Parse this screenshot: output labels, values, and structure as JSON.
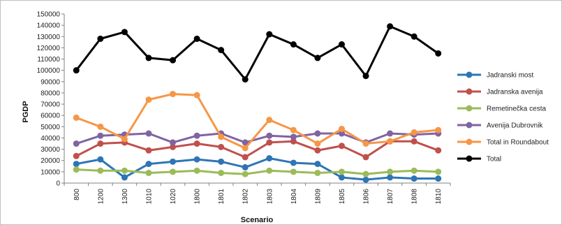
{
  "chart_data": {
    "type": "line",
    "title": "",
    "xlabel": "Scenario",
    "ylabel": "PGDP",
    "ylim": [
      0,
      150000
    ],
    "ytick_step": 10000,
    "grid": false,
    "legend_position": "right",
    "categories": [
      "800",
      "1200",
      "1300",
      "1010",
      "1020",
      "1800",
      "1801",
      "1802",
      "1803",
      "1804",
      "1809",
      "1805",
      "1806",
      "1807",
      "1808",
      "1810"
    ],
    "series": [
      {
        "name": "Jadranski most",
        "color": "#2e75b6",
        "values": [
          17000,
          21000,
          5000,
          17000,
          19000,
          21000,
          19000,
          14000,
          22000,
          18000,
          17000,
          5000,
          3000,
          5000,
          4000,
          4000
        ]
      },
      {
        "name": "Jadranska avenija",
        "color": "#c0504d",
        "values": [
          24000,
          35000,
          36000,
          29000,
          32000,
          35000,
          32000,
          23000,
          36000,
          37000,
          29000,
          33000,
          23000,
          37000,
          37000,
          29000
        ]
      },
      {
        "name": "Remetinečka cesta",
        "color": "#9bbb59",
        "values": [
          12000,
          11000,
          11000,
          9000,
          10000,
          11000,
          9000,
          8000,
          11000,
          10000,
          9000,
          10000,
          8000,
          10000,
          11000,
          10000
        ]
      },
      {
        "name": "Avenija Dubrovnik",
        "color": "#8064a2",
        "values": [
          35000,
          42000,
          43000,
          44000,
          36000,
          42000,
          44000,
          36000,
          42000,
          41000,
          44000,
          44000,
          36000,
          44000,
          43000,
          44000
        ]
      },
      {
        "name": "Total in Roundabout",
        "color": "#f79646",
        "values": [
          58000,
          50000,
          39000,
          74000,
          79000,
          78000,
          41000,
          31000,
          56000,
          47000,
          35000,
          48000,
          35000,
          37000,
          45000,
          47000
        ]
      },
      {
        "name": "Total",
        "color": "#000000",
        "values": [
          100000,
          128000,
          134000,
          111000,
          109000,
          128000,
          118000,
          92000,
          132000,
          123000,
          111000,
          123000,
          95000,
          139000,
          130000,
          115000
        ]
      }
    ]
  }
}
